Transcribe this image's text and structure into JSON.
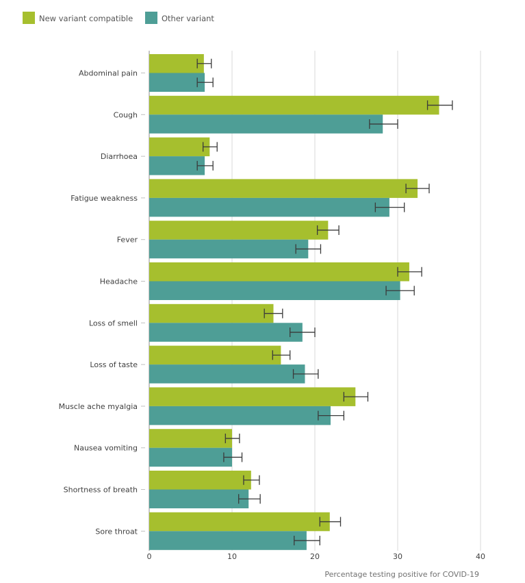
{
  "chart_data": {
    "type": "bar",
    "orientation": "horizontal",
    "xlabel": "Percentage testing positive for COVID-19",
    "xlim": [
      0,
      40
    ],
    "xticks": [
      0,
      10,
      20,
      30,
      40
    ],
    "grid": true,
    "legend_position": "top-left",
    "categories": [
      "Abdominal pain",
      "Cough",
      "Diarrhoea",
      "Fatigue weakness",
      "Fever",
      "Headache",
      "Loss of smell",
      "Loss of taste",
      "Muscle ache myalgia",
      "Nausea vomiting",
      "Shortness of breath",
      "Sore throat"
    ],
    "series": [
      {
        "name": "New variant compatible",
        "color": "#a6bf2e",
        "values": [
          6.6,
          35.0,
          7.3,
          32.4,
          21.6,
          31.4,
          15.0,
          15.9,
          24.9,
          10.0,
          12.3,
          21.8
        ],
        "error_low": [
          5.8,
          33.6,
          6.5,
          31.0,
          20.3,
          30.0,
          13.9,
          14.9,
          23.5,
          9.2,
          11.4,
          20.6
        ],
        "error_high": [
          7.5,
          36.6,
          8.2,
          33.8,
          22.9,
          32.9,
          16.1,
          17.0,
          26.4,
          10.9,
          13.3,
          23.1
        ]
      },
      {
        "name": "Other variant",
        "color": "#4e9e96",
        "values": [
          6.7,
          28.2,
          6.7,
          29.0,
          19.2,
          30.3,
          18.5,
          18.8,
          21.9,
          10.0,
          12.0,
          19.0
        ],
        "error_low": [
          5.8,
          26.6,
          5.8,
          27.3,
          17.7,
          28.6,
          17.0,
          17.4,
          20.4,
          9.0,
          10.8,
          17.5
        ],
        "error_high": [
          7.7,
          30.0,
          7.7,
          30.8,
          20.7,
          32.0,
          20.0,
          20.4,
          23.5,
          11.2,
          13.4,
          20.6
        ]
      }
    ]
  }
}
